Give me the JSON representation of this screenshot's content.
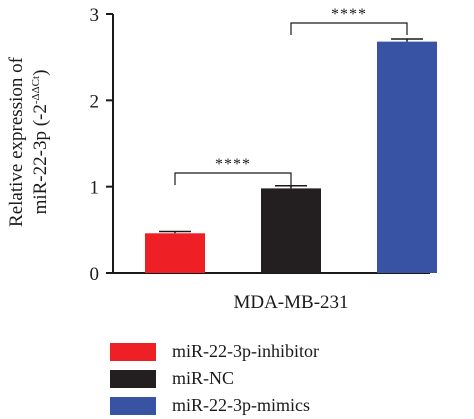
{
  "chart_data": {
    "type": "bar",
    "ylabel_line1": "Relative expression of",
    "ylabel_line2": "miR-22-3p (-2",
    "ylabel_superscript": "-ΔΔCt",
    "ylabel_line2_end": ")",
    "xlabel": "MDA-MB-231",
    "ylim": [
      0,
      3
    ],
    "yticks": [
      "0",
      "1",
      "2",
      "3"
    ],
    "series": [
      {
        "name": "miR-22-3p-inhibitor",
        "value": 0.46,
        "error": 0.02,
        "color": "#ee1f25"
      },
      {
        "name": "miR-NC",
        "value": 0.98,
        "error": 0.03,
        "color": "#231f20"
      },
      {
        "name": "miR-22-3p-mimics",
        "value": 2.68,
        "error": 0.03,
        "color": "#3953a4"
      }
    ],
    "significance": [
      {
        "from": 0,
        "to": 1,
        "label": "****"
      },
      {
        "from": 1,
        "to": 2,
        "label": "****"
      }
    ],
    "legend_position": "bottom"
  }
}
